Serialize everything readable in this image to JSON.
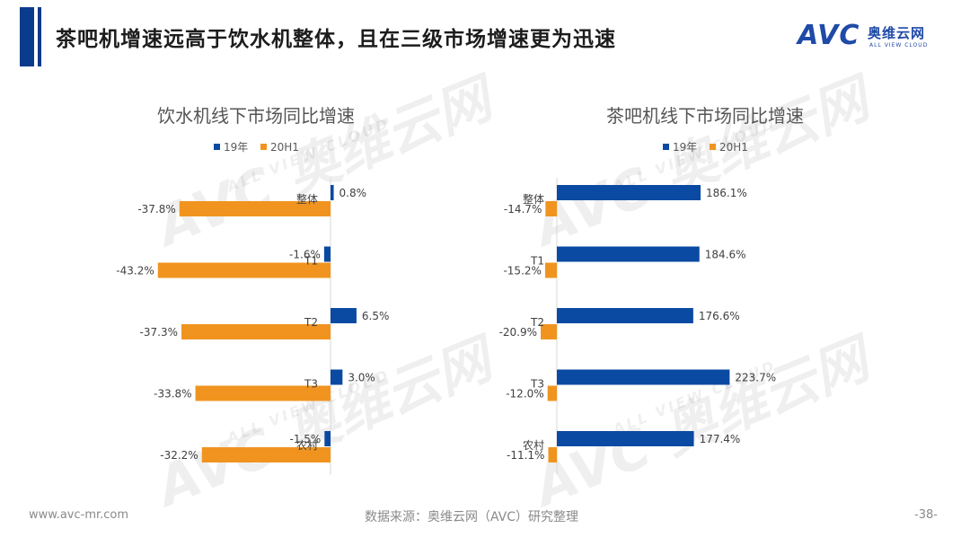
{
  "header": {
    "title": "茶吧机增速远高于饮水机整体，且在三级市场增速更为迅速"
  },
  "logo": {
    "mark": "AVC",
    "name_cn": "奥维云网",
    "name_en": "ALL VIEW CLOUD"
  },
  "watermark": {
    "mark": "AVC",
    "name_cn": "奥维云网",
    "name_en": "ALL VIEW CLOUD"
  },
  "colors": {
    "series_19": "#0b4aa2",
    "series_20h1": "#f0941f",
    "accent": "#0b3b8c"
  },
  "chart_data": [
    {
      "type": "bar",
      "orientation": "horizontal",
      "title": "饮水机线下市场同比增速",
      "categories": [
        "整体",
        "T1",
        "T2",
        "T3",
        "农村"
      ],
      "series": [
        {
          "name": "19年",
          "values": [
            0.8,
            -1.6,
            6.5,
            3.0,
            -1.5
          ],
          "labels": [
            "0.8%",
            "-1.6%",
            "6.5%",
            "3.0%",
            "-1.5%"
          ]
        },
        {
          "name": "20H1",
          "values": [
            -37.8,
            -43.2,
            -37.3,
            -33.8,
            -32.2
          ],
          "labels": [
            "-37.8%",
            "-43.2%",
            "-37.3%",
            "-33.8%",
            "-32.2%"
          ]
        }
      ],
      "legend": "top",
      "grid": false
    },
    {
      "type": "bar",
      "orientation": "horizontal",
      "title": "茶吧机线下市场同比增速",
      "categories": [
        "整体",
        "T1",
        "T2",
        "T3",
        "农村"
      ],
      "series": [
        {
          "name": "19年",
          "values": [
            186.1,
            184.6,
            176.6,
            223.7,
            177.4
          ],
          "labels": [
            "186.1%",
            "184.6%",
            "176.6%",
            "223.7%",
            "177.4%"
          ]
        },
        {
          "name": "20H1",
          "values": [
            -14.7,
            -15.2,
            -20.9,
            -12.0,
            -11.1
          ],
          "labels": [
            "-14.7%",
            "-15.2%",
            "-20.9%",
            "-12.0%",
            "-11.1%"
          ]
        }
      ],
      "legend": "top",
      "grid": false
    }
  ],
  "footer": {
    "website": "www.avc-mr.com",
    "source": "数据来源：奥维云网（AVC）研究整理",
    "page": "-38-"
  }
}
